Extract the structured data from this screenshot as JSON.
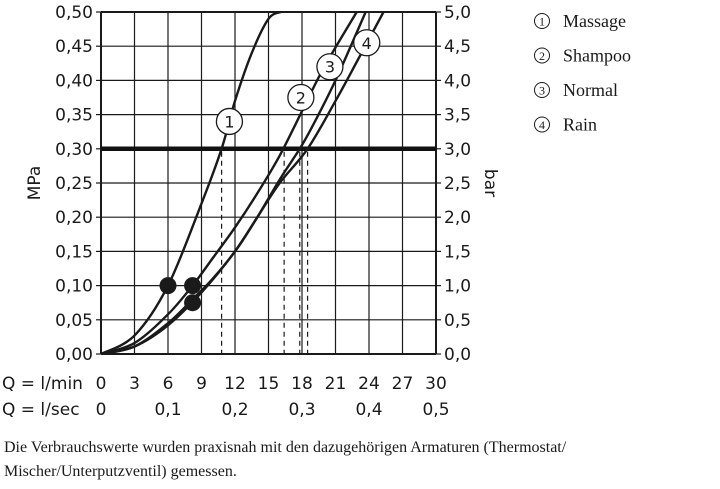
{
  "chart_data": {
    "type": "line",
    "x_unit_lmin": "Q = l/min",
    "x_unit_lsec": "Q = l/sec",
    "ylabel_left": "MPa",
    "ylabel_right": "bar",
    "x_ticks_lmin": [
      "0",
      "3",
      "6",
      "9",
      "12",
      "15",
      "18",
      "21",
      "24",
      "27",
      "30"
    ],
    "x_ticks_lsec": [
      "0",
      "0,1",
      "0,2",
      "0,3",
      "0,4",
      "0,5"
    ],
    "y_ticks_mpa": [
      "0,00",
      "0,05",
      "0,10",
      "0,15",
      "0,20",
      "0,25",
      "0,30",
      "0,35",
      "0,40",
      "0,45",
      "0,50"
    ],
    "y_ticks_bar": [
      "0,0",
      "0,5",
      "1,0",
      "1,5",
      "2,0",
      "2,5",
      "3,0",
      "3,5",
      "4,0",
      "4,5",
      "5,0"
    ],
    "xlim": [
      0,
      30
    ],
    "ylim": [
      0,
      0.5
    ],
    "grid": true,
    "reference_line_mpa": 0.3,
    "legend_position": "right",
    "series": [
      {
        "id": "1",
        "name": "Massage",
        "x": [
          0,
          3,
          6,
          9,
          10.8,
          12,
          13.5,
          15,
          16.1
        ],
        "y": [
          0,
          0.027,
          0.1,
          0.22,
          0.3,
          0.37,
          0.44,
          0.49,
          0.5
        ],
        "flow_at_reference": 10.8,
        "dot": [
          6,
          0.1
        ],
        "label_at": [
          11.5,
          0.34
        ]
      },
      {
        "id": "2",
        "name": "Shampoo",
        "x": [
          0,
          3,
          6,
          8.2,
          10,
          12,
          14,
          16,
          18,
          20,
          22.9
        ],
        "y": [
          0,
          0.016,
          0.058,
          0.1,
          0.14,
          0.185,
          0.235,
          0.29,
          0.355,
          0.42,
          0.5
        ],
        "flow_at_reference": 16.4,
        "dot": [
          8.2,
          0.1
        ],
        "label_at": [
          17.9,
          0.375
        ]
      },
      {
        "id": "3",
        "name": "Normal",
        "x": [
          0,
          3,
          6,
          8.2,
          10,
          12,
          14,
          16,
          17.8,
          19,
          21,
          23.7
        ],
        "y": [
          0,
          0.011,
          0.045,
          0.08,
          0.11,
          0.15,
          0.2,
          0.255,
          0.3,
          0.335,
          0.4,
          0.5
        ],
        "flow_at_reference": 17.8,
        "dot": [
          8.2,
          0.075
        ],
        "label_at": [
          20.5,
          0.42
        ]
      },
      {
        "id": "4",
        "name": "Rain",
        "x": [
          0,
          3,
          6,
          9,
          12,
          14,
          16,
          18.5,
          21,
          23,
          25.3
        ],
        "y": [
          0,
          0.011,
          0.042,
          0.09,
          0.15,
          0.2,
          0.25,
          0.3,
          0.37,
          0.43,
          0.5
        ],
        "flow_at_reference": 18.5,
        "dot": null,
        "label_at": [
          23.8,
          0.455
        ]
      }
    ]
  },
  "legend": [
    {
      "marker": "①",
      "label": "Massage"
    },
    {
      "marker": "②",
      "label": "Shampoo"
    },
    {
      "marker": "③",
      "label": "Normal"
    },
    {
      "marker": "④",
      "label": "Rain"
    }
  ],
  "footnote": "Die Verbrauchswerte wurden praxisnah mit den dazugehörigen Armaturen (Thermostat/ Mischer/Unterputzventil) gemessen."
}
